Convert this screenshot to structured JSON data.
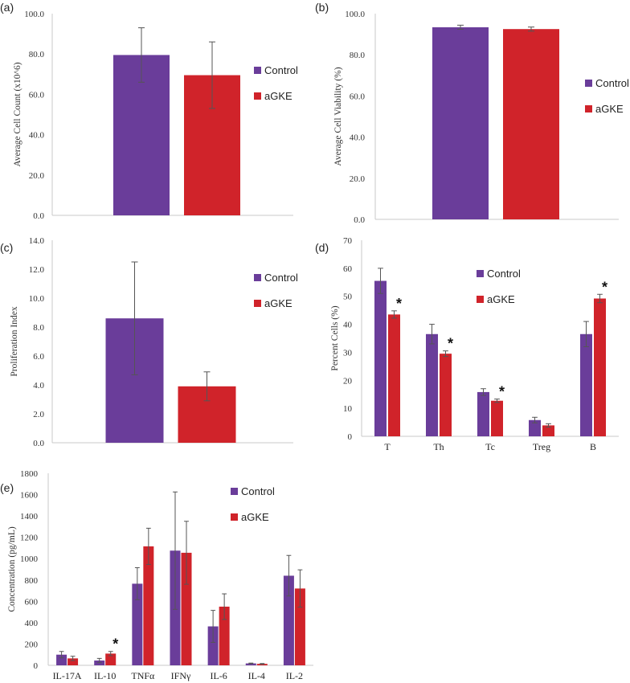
{
  "colors": {
    "control": "#6a3d9a",
    "agke": "#d0232a",
    "axis": "#c8c8c8",
    "error": "#555555"
  },
  "legend": {
    "control": "Control",
    "agke": "aGKE"
  },
  "chart_data": [
    {
      "panel": "(a)",
      "type": "bar",
      "title": "",
      "ylabel": "Average Cell Count (x10^6)",
      "xlabel": "",
      "ylim": [
        0,
        100
      ],
      "ytick_labels": [
        "0.0",
        "20.0",
        "40.0",
        "60.0",
        "80.0",
        "100.0"
      ],
      "grid": false,
      "legend_position": "right",
      "categories": [
        ""
      ],
      "series": [
        {
          "name": "Control",
          "values": [
            79.5
          ],
          "errors": [
            13.5
          ]
        },
        {
          "name": "aGKE",
          "values": [
            69.5
          ],
          "errors": [
            16.5
          ]
        }
      ],
      "significance": []
    },
    {
      "panel": "(b)",
      "type": "bar",
      "title": "",
      "ylabel": "Average Cell Viability (%)",
      "xlabel": "",
      "ylim": [
        0,
        100
      ],
      "ytick_labels": [
        "0.0",
        "20.0",
        "40.0",
        "60.0",
        "80.0",
        "100.0"
      ],
      "grid": false,
      "legend_position": "right",
      "categories": [
        ""
      ],
      "series": [
        {
          "name": "Control",
          "values": [
            93.4
          ],
          "errors": [
            1.0
          ]
        },
        {
          "name": "aGKE",
          "values": [
            92.5
          ],
          "errors": [
            1.0
          ]
        }
      ],
      "significance": []
    },
    {
      "panel": "(c)",
      "type": "bar",
      "title": "",
      "ylabel": "Proliferation Index",
      "xlabel": "",
      "ylim": [
        0,
        14
      ],
      "ytick_labels": [
        "0.0",
        "2.0",
        "4.0",
        "6.0",
        "8.0",
        "10.0",
        "12.0",
        "14.0"
      ],
      "grid": false,
      "legend_position": "right",
      "categories": [
        ""
      ],
      "series": [
        {
          "name": "Control",
          "values": [
            8.6
          ],
          "errors": [
            3.9
          ]
        },
        {
          "name": "aGKE",
          "values": [
            3.9
          ],
          "errors": [
            1.0
          ]
        }
      ],
      "significance": []
    },
    {
      "panel": "(d)",
      "type": "bar",
      "title": "",
      "ylabel": "Percent Cells (%)",
      "xlabel": "",
      "ylim": [
        0,
        70
      ],
      "ytick_labels": [
        "0",
        "10",
        "20",
        "30",
        "40",
        "50",
        "60",
        "70"
      ],
      "grid": false,
      "legend_position": "top-right",
      "categories": [
        "T",
        "Th",
        "Tc",
        "Treg",
        "B"
      ],
      "series": [
        {
          "name": "Control",
          "values": [
            55.5,
            36.5,
            15.8,
            5.8,
            36.5
          ],
          "errors": [
            4.5,
            3.5,
            1.2,
            1.0,
            4.5
          ]
        },
        {
          "name": "aGKE",
          "values": [
            43.5,
            29.5,
            12.7,
            3.9,
            49.2
          ],
          "errors": [
            1.3,
            1.0,
            0.6,
            0.6,
            1.5
          ]
        }
      ],
      "significance": [
        {
          "category_index": 0,
          "label": "*"
        },
        {
          "category_index": 1,
          "label": "*"
        },
        {
          "category_index": 2,
          "label": "*"
        },
        {
          "category_index": 4,
          "label": "*"
        }
      ]
    },
    {
      "panel": "(e)",
      "type": "bar",
      "title": "",
      "ylabel": "Concentration (pg/mL)",
      "xlabel": "",
      "ylim": [
        0,
        1800
      ],
      "ytick_labels": [
        "0",
        "200",
        "400",
        "600",
        "800",
        "1000",
        "1200",
        "1400",
        "1600",
        "1800"
      ],
      "grid": false,
      "legend_position": "top-right",
      "categories": [
        "IL-17A",
        "IL-10",
        "TNFα",
        "IFNγ",
        "IL-6",
        "IL-4",
        "IL-2"
      ],
      "series": [
        {
          "name": "Control",
          "values": [
            100,
            45,
            765,
            1075,
            365,
            18,
            840
          ],
          "errors": [
            30,
            20,
            150,
            550,
            150,
            3,
            190
          ]
        },
        {
          "name": "aGKE",
          "values": [
            65,
            110,
            1115,
            1055,
            550,
            14,
            720
          ],
          "errors": [
            20,
            20,
            170,
            295,
            120,
            3,
            175
          ]
        }
      ],
      "significance": [
        {
          "category_index": 1,
          "label": "*"
        }
      ]
    }
  ]
}
